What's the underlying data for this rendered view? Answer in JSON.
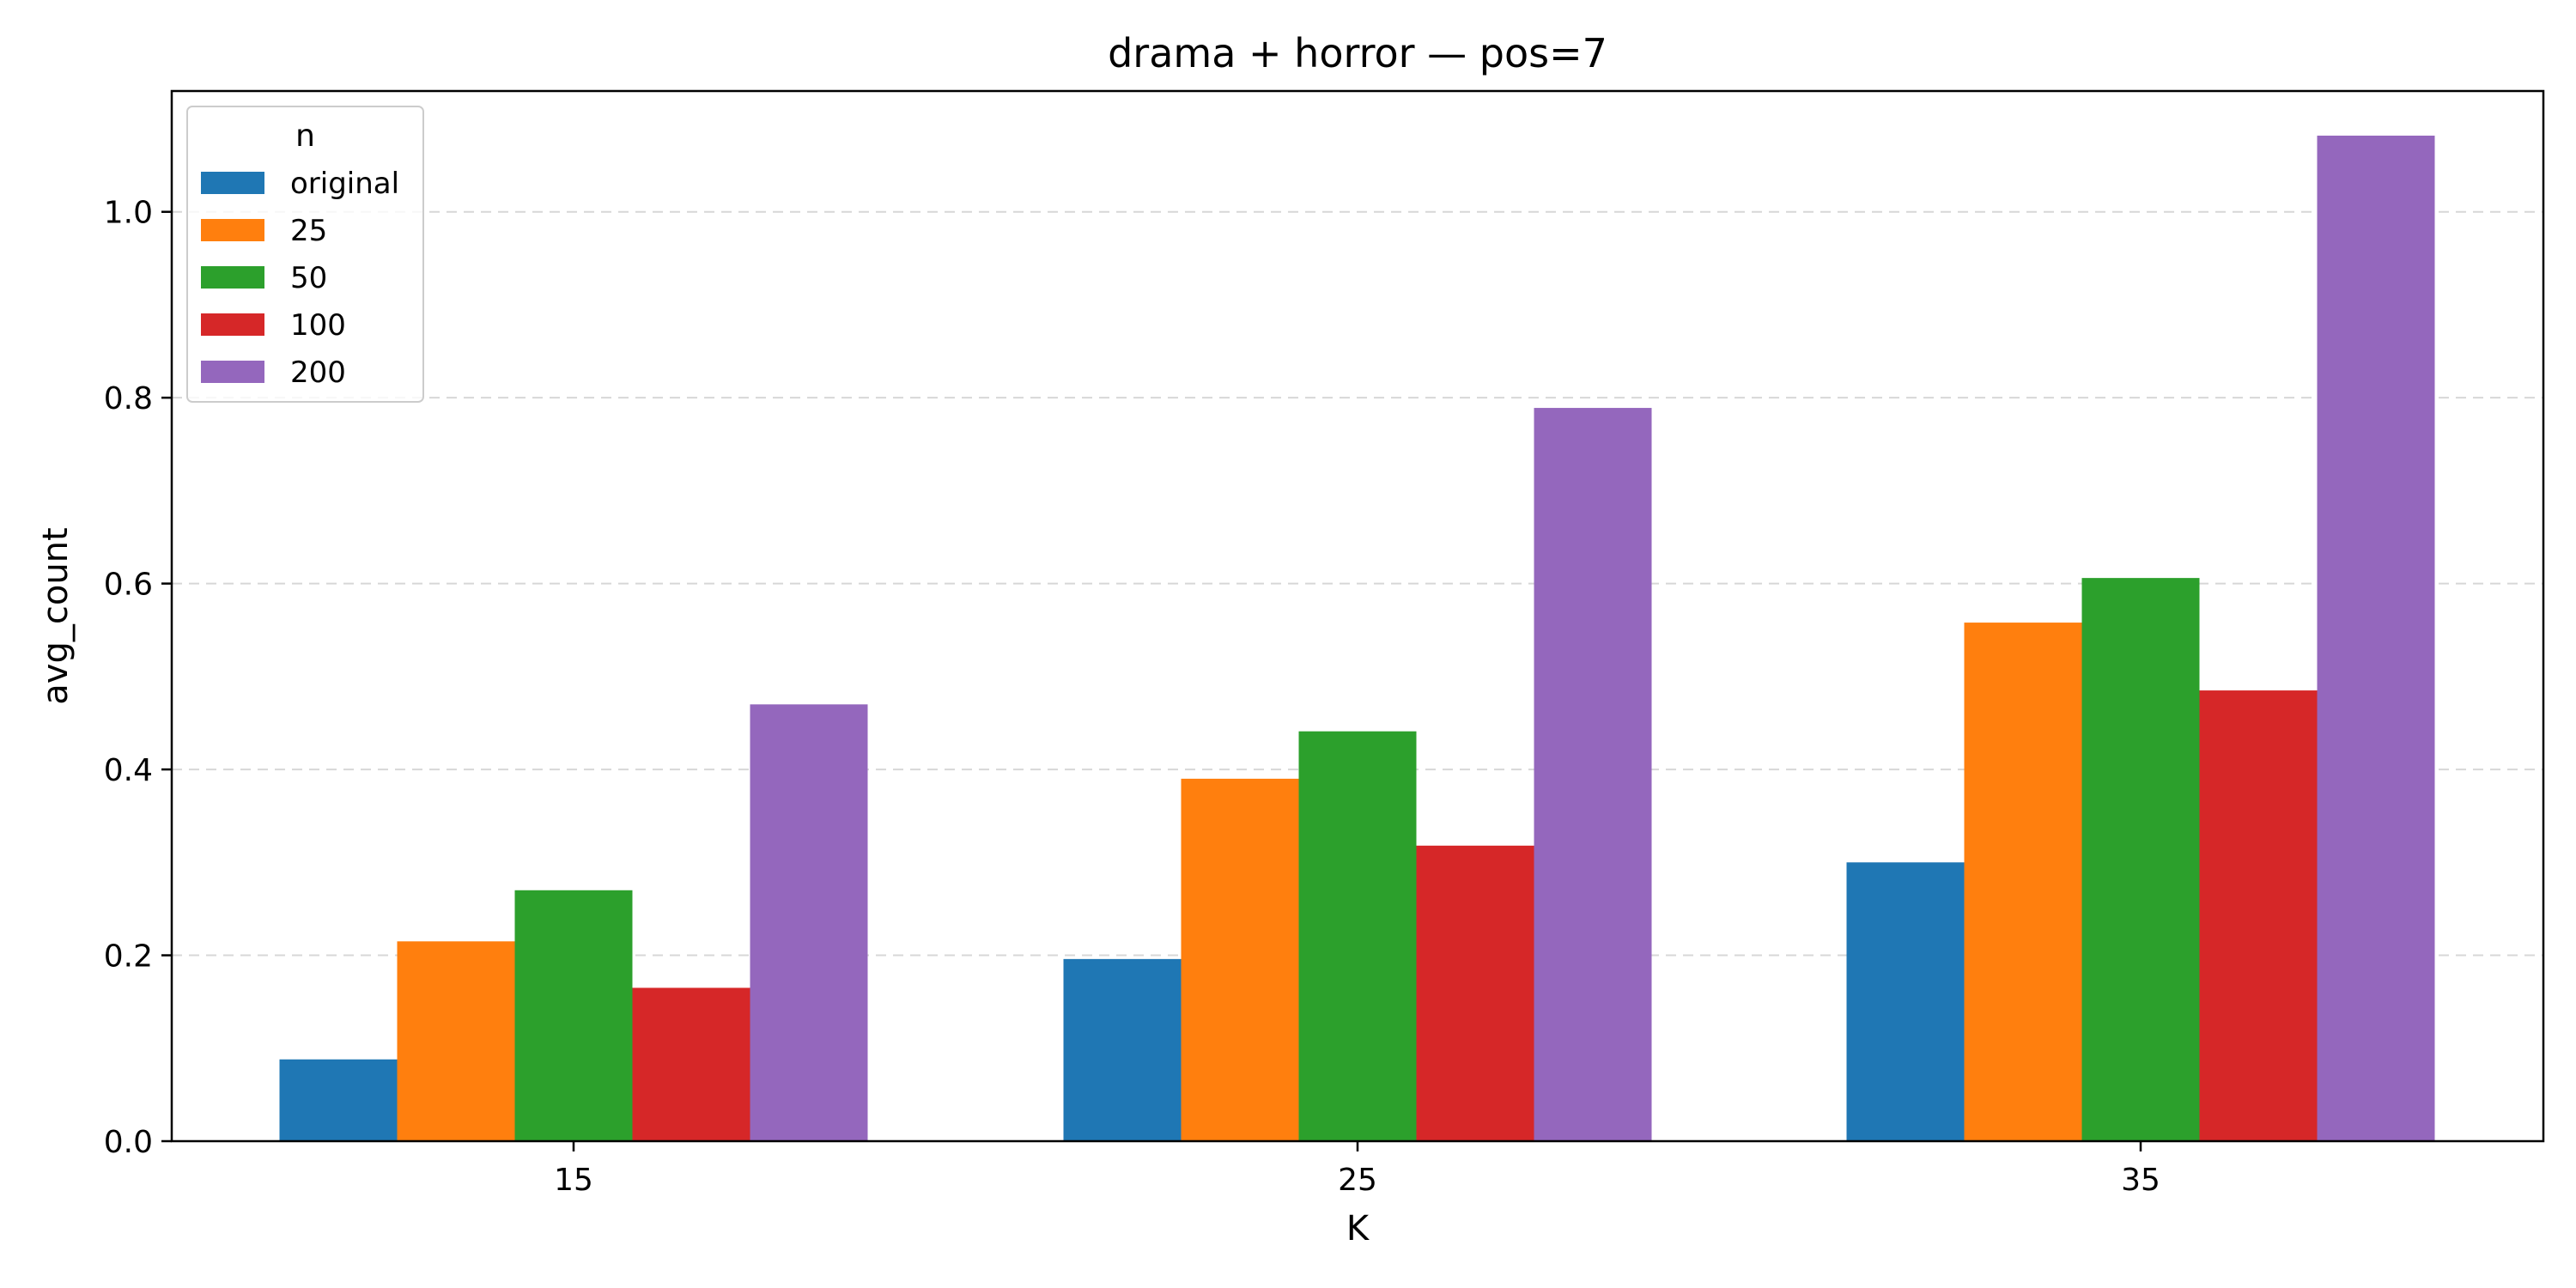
{
  "chart_data": {
    "type": "bar",
    "title": "drama + horror — pos=7",
    "xlabel": "K",
    "ylabel": "avg_count",
    "categories": [
      "15",
      "25",
      "35"
    ],
    "ylim": [
      0,
      1.13
    ],
    "yticks": [
      "0.0",
      "0.2",
      "0.4",
      "0.6",
      "0.8",
      "1.0"
    ],
    "grid": "y, dashed",
    "legend": {
      "title": "n",
      "placement": "top-left"
    },
    "series": [
      {
        "name": "original",
        "color": "#1f77b4",
        "values": [
          0.088,
          0.196,
          0.3
        ]
      },
      {
        "name": "25",
        "color": "#ff7f0e",
        "values": [
          0.215,
          0.39,
          0.558
        ]
      },
      {
        "name": "50",
        "color": "#2ca02c",
        "values": [
          0.27,
          0.441,
          0.606
        ]
      },
      {
        "name": "100",
        "color": "#d62728",
        "values": [
          0.165,
          0.318,
          0.485
        ]
      },
      {
        "name": "200",
        "color": "#9467bd",
        "values": [
          0.47,
          0.789,
          1.082
        ]
      }
    ]
  }
}
